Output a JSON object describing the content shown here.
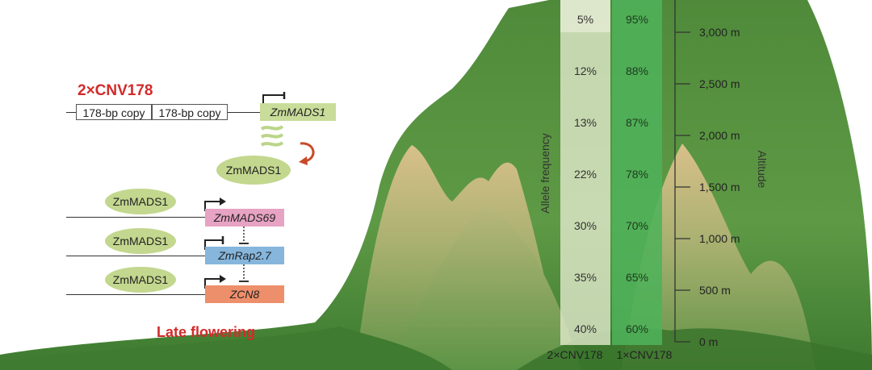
{
  "left_panel": {
    "title": "2×CNV178",
    "copies": [
      "178-bp copy",
      "178-bp copy"
    ],
    "top_gene": "ZmMADS1",
    "protein": "ZmMADS1",
    "targets": [
      {
        "protein": "ZmMADS1",
        "gene": "ZmMADS69",
        "color": "#e7a3c3"
      },
      {
        "protein": "ZmMADS1",
        "gene": "ZmRap2.7",
        "color": "#86b6dc"
      },
      {
        "protein": "ZmMADS1",
        "gene": "ZCN8",
        "color": "#ee8f6b"
      }
    ],
    "outcome": "Late flowering"
  },
  "frequency_panel": {
    "axis_label": "Allele frequency",
    "columns": [
      "2×CNV178",
      "1×CNV178"
    ],
    "rows": [
      {
        "two_copy": "5%",
        "one_copy": "95%"
      },
      {
        "two_copy": "12%",
        "one_copy": "88%"
      },
      {
        "two_copy": "13%",
        "one_copy": "87%"
      },
      {
        "two_copy": "22%",
        "one_copy": "78%"
      },
      {
        "two_copy": "30%",
        "one_copy": "70%"
      },
      {
        "two_copy": "35%",
        "one_copy": "65%"
      },
      {
        "two_copy": "40%",
        "one_copy": "60%"
      }
    ]
  },
  "altitude_axis": {
    "label": "Altitude",
    "ticks": [
      "3,000 m",
      "2,500 m",
      "2,000 m",
      "1,500 m",
      "1,000 m",
      "500 m",
      "0 m"
    ]
  },
  "colors": {
    "mountain_dark": "#3e7a2e",
    "mountain_light": "#d2bd86",
    "oval": "#c3d78e",
    "gene_box": "#c9dc9a",
    "title_red": "#d22b2b"
  }
}
